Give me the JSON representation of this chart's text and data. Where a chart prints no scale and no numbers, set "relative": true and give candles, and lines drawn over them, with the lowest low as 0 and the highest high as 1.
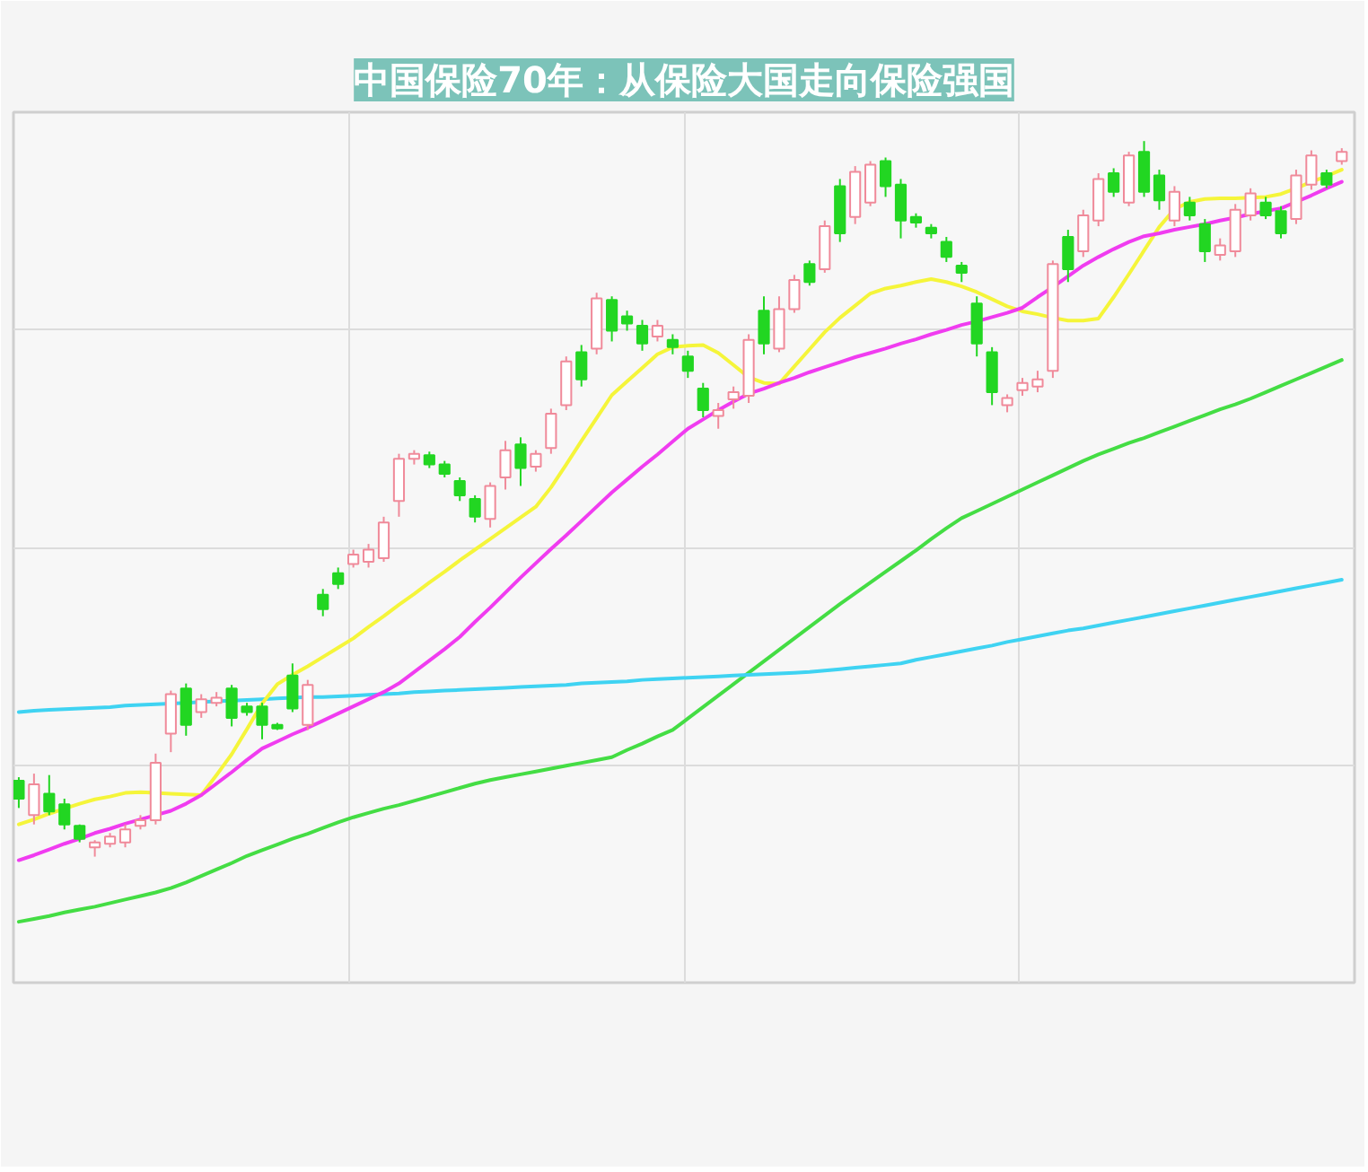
{
  "chart_data": {
    "type": "candlestick",
    "title": "中国保险70年：从保险大国走向保险强国",
    "relative": true,
    "grid": true,
    "tick_labels": false,
    "categories": [
      null,
      null,
      null,
      null,
      null,
      null,
      null,
      null,
      null,
      null,
      null,
      null,
      null,
      null,
      null,
      null,
      null,
      null,
      null,
      null,
      null,
      null,
      null,
      null,
      null,
      null,
      null,
      null,
      null,
      null,
      null,
      null,
      null,
      null,
      null,
      null,
      null,
      null,
      null,
      null,
      null,
      null,
      null,
      null,
      null,
      null,
      null,
      null,
      null,
      null,
      null,
      null,
      null,
      null,
      null,
      null,
      null,
      null,
      null,
      null,
      null,
      null,
      null,
      null,
      null,
      null,
      null,
      null,
      null,
      null,
      null,
      null,
      null,
      null,
      null,
      null,
      null,
      null,
      null,
      null,
      null,
      null,
      null,
      null,
      null,
      null,
      null,
      null
    ],
    "ohlc": [
      [
        0.106,
        0.111,
        0.068,
        0.081
      ],
      [
        0.058,
        0.116,
        0.045,
        0.101
      ],
      [
        0.088,
        0.114,
        0.058,
        0.063
      ],
      [
        0.073,
        0.081,
        0.038,
        0.045
      ],
      [
        0.043,
        0.045,
        0.02,
        0.025
      ],
      [
        0.013,
        0.023,
        0,
        0.02
      ],
      [
        0.018,
        0.033,
        0.013,
        0.028
      ],
      [
        0.02,
        0.045,
        0.013,
        0.038
      ],
      [
        0.043,
        0.058,
        0.038,
        0.051
      ],
      [
        0.051,
        0.144,
        0.045,
        0.131
      ],
      [
        0.172,
        0.232,
        0.146,
        0.227
      ],
      [
        0.235,
        0.242,
        0.169,
        0.184
      ],
      [
        0.202,
        0.227,
        0.194,
        0.22
      ],
      [
        0.215,
        0.23,
        0.21,
        0.222
      ],
      [
        0.235,
        0.24,
        0.182,
        0.194
      ],
      [
        0.21,
        0.215,
        0.197,
        0.202
      ],
      [
        0.21,
        0.215,
        0.164,
        0.184
      ],
      [
        0.184,
        0.187,
        0.177,
        0.179
      ],
      [
        0.253,
        0.27,
        0.202,
        0.207
      ],
      [
        0.184,
        0.247,
        0.177,
        0.24
      ],
      [
        0.366,
        0.374,
        0.336,
        0.346
      ],
      [
        0.396,
        0.404,
        0.374,
        0.381
      ],
      [
        0.409,
        0.429,
        0.404,
        0.422
      ],
      [
        0.412,
        0.437,
        0.404,
        0.429
      ],
      [
        0.417,
        0.475,
        0.412,
        0.467
      ],
      [
        0.497,
        0.563,
        0.475,
        0.556
      ],
      [
        0.556,
        0.568,
        0.548,
        0.563
      ],
      [
        0.561,
        0.566,
        0.543,
        0.548
      ],
      [
        0.548,
        0.553,
        0.53,
        0.535
      ],
      [
        0.525,
        0.53,
        0.497,
        0.505
      ],
      [
        0.5,
        0.505,
        0.467,
        0.475
      ],
      [
        0.472,
        0.523,
        0.46,
        0.518
      ],
      [
        0.53,
        0.581,
        0.513,
        0.568
      ],
      [
        0.576,
        0.586,
        0.518,
        0.543
      ],
      [
        0.545,
        0.568,
        0.538,
        0.563
      ],
      [
        0.571,
        0.626,
        0.563,
        0.619
      ],
      [
        0.631,
        0.699,
        0.624,
        0.692
      ],
      [
        0.705,
        0.715,
        0.657,
        0.667
      ],
      [
        0.71,
        0.788,
        0.702,
        0.78
      ],
      [
        0.778,
        0.783,
        0.72,
        0.735
      ],
      [
        0.755,
        0.763,
        0.735,
        0.745
      ],
      [
        0.742,
        0.75,
        0.707,
        0.717
      ],
      [
        0.727,
        0.75,
        0.72,
        0.742
      ],
      [
        0.722,
        0.73,
        0.702,
        0.712
      ],
      [
        0.699,
        0.707,
        0.669,
        0.679
      ],
      [
        0.654,
        0.662,
        0.614,
        0.624
      ],
      [
        0.616,
        0.634,
        0.598,
        0.624
      ],
      [
        0.639,
        0.657,
        0.626,
        0.649
      ],
      [
        0.644,
        0.73,
        0.634,
        0.722
      ],
      [
        0.763,
        0.783,
        0.702,
        0.717
      ],
      [
        0.71,
        0.783,
        0.705,
        0.765
      ],
      [
        0.765,
        0.813,
        0.76,
        0.806
      ],
      [
        0.828,
        0.833,
        0.798,
        0.803
      ],
      [
        0.821,
        0.889,
        0.816,
        0.881
      ],
      [
        0.937,
        0.947,
        0.859,
        0.871
      ],
      [
        0.894,
        0.965,
        0.884,
        0.957
      ],
      [
        0.914,
        0.972,
        0.909,
        0.967
      ],
      [
        0.972,
        0.977,
        0.922,
        0.937
      ],
      [
        0.939,
        0.947,
        0.864,
        0.889
      ],
      [
        0.894,
        0.899,
        0.879,
        0.886
      ],
      [
        0.879,
        0.884,
        0.864,
        0.871
      ],
      [
        0.859,
        0.866,
        0.831,
        0.838
      ],
      [
        0.826,
        0.831,
        0.803,
        0.816
      ],
      [
        0.773,
        0.783,
        0.699,
        0.717
      ],
      [
        0.705,
        0.712,
        0.631,
        0.649
      ],
      [
        0.631,
        0.646,
        0.621,
        0.641
      ],
      [
        0.652,
        0.669,
        0.644,
        0.662
      ],
      [
        0.657,
        0.679,
        0.649,
        0.667
      ],
      [
        0.679,
        0.833,
        0.669,
        0.828
      ],
      [
        0.866,
        0.876,
        0.803,
        0.821
      ],
      [
        0.846,
        0.904,
        0.838,
        0.896
      ],
      [
        0.889,
        0.955,
        0.881,
        0.947
      ],
      [
        0.955,
        0.962,
        0.922,
        0.929
      ],
      [
        0.914,
        0.985,
        0.909,
        0.98
      ],
      [
        0.985,
        1,
        0.922,
        0.929
      ],
      [
        0.952,
        0.96,
        0.904,
        0.917
      ],
      [
        0.889,
        0.937,
        0.881,
        0.929
      ],
      [
        0.914,
        0.922,
        0.889,
        0.896
      ],
      [
        0.884,
        0.891,
        0.831,
        0.846
      ],
      [
        0.841,
        0.864,
        0.833,
        0.854
      ],
      [
        0.846,
        0.912,
        0.838,
        0.904
      ],
      [
        0.896,
        0.934,
        0.889,
        0.927
      ],
      [
        0.914,
        0.922,
        0.891,
        0.896
      ],
      [
        0.902,
        0.909,
        0.864,
        0.871
      ],
      [
        0.891,
        0.96,
        0.884,
        0.952
      ],
      [
        0.939,
        0.987,
        0.932,
        0.98
      ],
      [
        0.955,
        0.96,
        0.934,
        0.939
      ],
      [
        0.972,
        0.99,
        0.967,
        0.985
      ]
    ],
    "colors": [
      "#22d622",
      "#f08a9a",
      "#22d622",
      "#22d622",
      "#22d622",
      "#f08a9a",
      "#f08a9a",
      "#f08a9a",
      "#f08a9a",
      "#f08a9a",
      "#f08a9a",
      "#22d622",
      "#f08a9a",
      "#f08a9a",
      "#22d622",
      "#22d622",
      "#22d622",
      "#22d622",
      "#22d622",
      "#f08a9a",
      "#22d622",
      "#22d622",
      "#f08a9a",
      "#f08a9a",
      "#f08a9a",
      "#f08a9a",
      "#f08a9a",
      "#22d622",
      "#22d622",
      "#22d622",
      "#22d622",
      "#f08a9a",
      "#f08a9a",
      "#22d622",
      "#f08a9a",
      "#f08a9a",
      "#f08a9a",
      "#22d622",
      "#f08a9a",
      "#22d622",
      "#22d622",
      "#22d622",
      "#f08a9a",
      "#22d622",
      "#22d622",
      "#22d622",
      "#f08a9a",
      "#f08a9a",
      "#f08a9a",
      "#22d622",
      "#f08a9a",
      "#f08a9a",
      "#22d622",
      "#f08a9a",
      "#22d622",
      "#f08a9a",
      "#f08a9a",
      "#22d622",
      "#22d622",
      "#22d622",
      "#22d622",
      "#22d622",
      "#22d622",
      "#22d622",
      "#22d622",
      "#f08a9a",
      "#f08a9a",
      "#f08a9a",
      "#f08a9a",
      "#22d622",
      "#f08a9a",
      "#f08a9a",
      "#22d622",
      "#f08a9a",
      "#22d622",
      "#22d622",
      "#f08a9a",
      "#22d622",
      "#22d622",
      "#f08a9a",
      "#f08a9a",
      "#f08a9a",
      "#22d622",
      "#22d622",
      "#f08a9a",
      "#f08a9a",
      "#22d622",
      "#f08a9a"
    ],
    "series": [
      {
        "type": "line",
        "color": "#44dd44",
        "values": [
          -0.091,
          -0.087,
          -0.083,
          -0.078,
          -0.074,
          -0.07,
          -0.065,
          -0.06,
          -0.055,
          -0.05,
          -0.044,
          -0.036,
          -0.027,
          -0.018,
          -0.009,
          0.001,
          0.009,
          0.017,
          0.025,
          0.032,
          0.04,
          0.048,
          0.055,
          0.061,
          0.067,
          0.072,
          0.078,
          0.084,
          0.09,
          0.096,
          0.102,
          0.107,
          0.111,
          0.115,
          0.119,
          0.123,
          0.127,
          0.131,
          0.135,
          0.139,
          0.149,
          0.158,
          0.168,
          0.177,
          0.193,
          0.209,
          0.225,
          0.241,
          0.257,
          0.273,
          0.289,
          0.305,
          0.321,
          0.337,
          0.353,
          0.368,
          0.383,
          0.398,
          0.413,
          0.428,
          0.444,
          0.459,
          0.473,
          0.483,
          0.493,
          0.503,
          0.513,
          0.523,
          0.533,
          0.543,
          0.553,
          0.562,
          0.57,
          0.578,
          0.585,
          0.593,
          0.601,
          0.609,
          0.617,
          0.625,
          0.632,
          0.64,
          0.649,
          0.658,
          0.667,
          0.676,
          0.685,
          0.694
        ]
      },
      {
        "type": "line",
        "color": "#3fd3f2",
        "values": [
          0.202,
          0.204,
          0.205,
          0.206,
          0.207,
          0.208,
          0.209,
          0.211,
          0.212,
          0.213,
          0.214,
          0.215,
          0.216,
          0.217,
          0.218,
          0.219,
          0.22,
          0.221,
          0.222,
          0.223,
          0.223,
          0.224,
          0.225,
          0.226,
          0.227,
          0.228,
          0.23,
          0.231,
          0.232,
          0.233,
          0.234,
          0.235,
          0.236,
          0.237,
          0.238,
          0.239,
          0.24,
          0.242,
          0.243,
          0.244,
          0.245,
          0.247,
          0.248,
          0.249,
          0.25,
          0.251,
          0.252,
          0.253,
          0.254,
          0.255,
          0.256,
          0.257,
          0.258,
          0.26,
          0.262,
          0.264,
          0.266,
          0.268,
          0.27,
          0.275,
          0.279,
          0.283,
          0.287,
          0.291,
          0.295,
          0.3,
          0.304,
          0.308,
          0.312,
          0.316,
          0.319,
          0.323,
          0.327,
          0.331,
          0.335,
          0.339,
          0.343,
          0.347,
          0.351,
          0.355,
          0.359,
          0.363,
          0.367,
          0.371,
          0.375,
          0.379,
          0.383,
          0.387
        ]
      },
      {
        "type": "line",
        "color": "#f5f53a",
        "values": [
          0.045,
          0.052,
          0.06,
          0.067,
          0.074,
          0.08,
          0.084,
          0.089,
          0.09,
          0.089,
          0.088,
          0.087,
          0.086,
          0.114,
          0.143,
          0.178,
          0.214,
          0.241,
          0.254,
          0.266,
          0.279,
          0.292,
          0.305,
          0.321,
          0.336,
          0.352,
          0.367,
          0.383,
          0.398,
          0.414,
          0.429,
          0.444,
          0.459,
          0.474,
          0.489,
          0.516,
          0.548,
          0.581,
          0.613,
          0.645,
          0.664,
          0.683,
          0.702,
          0.712,
          0.714,
          0.715,
          0.704,
          0.687,
          0.67,
          0.662,
          0.661,
          0.685,
          0.709,
          0.733,
          0.753,
          0.77,
          0.787,
          0.794,
          0.798,
          0.803,
          0.807,
          0.803,
          0.797,
          0.789,
          0.779,
          0.769,
          0.762,
          0.758,
          0.753,
          0.749,
          0.749,
          0.752,
          0.782,
          0.814,
          0.847,
          0.88,
          0.905,
          0.915,
          0.919,
          0.92,
          0.92,
          0.921,
          0.922,
          0.926,
          0.934,
          0.943,
          0.951,
          0.96
        ]
      },
      {
        "type": "line",
        "color": "#f03cf0",
        "values": [
          -0.005,
          0.002,
          0.01,
          0.018,
          0.025,
          0.033,
          0.039,
          0.046,
          0.052,
          0.058,
          0.064,
          0.074,
          0.086,
          0.102,
          0.118,
          0.135,
          0.151,
          0.161,
          0.171,
          0.18,
          0.19,
          0.2,
          0.21,
          0.22,
          0.23,
          0.242,
          0.258,
          0.274,
          0.29,
          0.307,
          0.328,
          0.348,
          0.369,
          0.39,
          0.41,
          0.43,
          0.449,
          0.469,
          0.489,
          0.509,
          0.527,
          0.545,
          0.562,
          0.58,
          0.598,
          0.611,
          0.624,
          0.636,
          0.647,
          0.654,
          0.662,
          0.669,
          0.677,
          0.684,
          0.691,
          0.698,
          0.704,
          0.71,
          0.717,
          0.723,
          0.73,
          0.736,
          0.743,
          0.748,
          0.754,
          0.76,
          0.767,
          0.782,
          0.796,
          0.811,
          0.826,
          0.838,
          0.849,
          0.859,
          0.867,
          0.871,
          0.876,
          0.88,
          0.884,
          0.889,
          0.893,
          0.898,
          0.902,
          0.906,
          0.915,
          0.924,
          0.934,
          0.943
        ]
      }
    ]
  }
}
